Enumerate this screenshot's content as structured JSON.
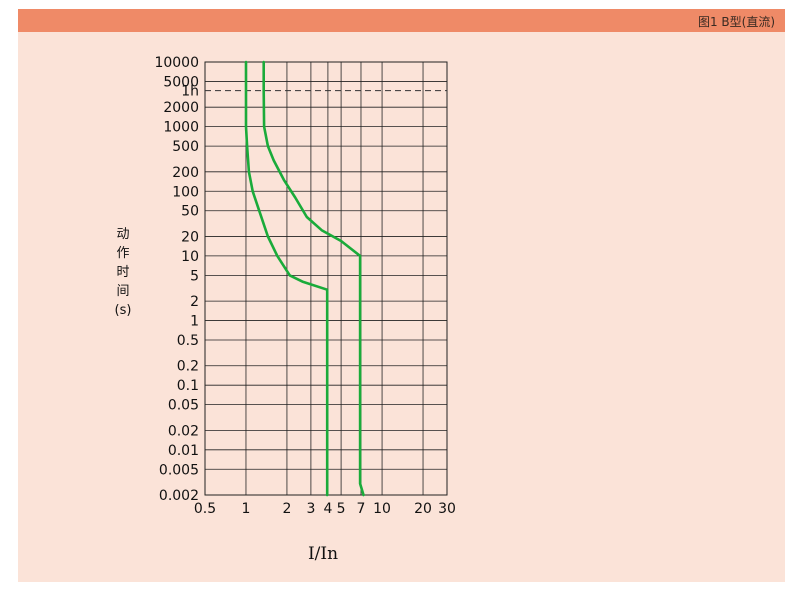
{
  "header": {
    "title": "图1   B型(直流)"
  },
  "colors": {
    "header": "#ef8a67",
    "panel": "#fbe3d8",
    "curve": "#1aab3a"
  },
  "chart_data": {
    "type": "line",
    "title": "图1   B型(直流)",
    "xlabel": "I/In",
    "ylabel_lines": [
      "动",
      "作",
      "时",
      "间",
      "(s)"
    ],
    "x_scale": "log",
    "y_scale": "log",
    "xlim": [
      0.5,
      30
    ],
    "ylim": [
      0.002,
      10000
    ],
    "x_ticks": [
      {
        "v": 0.5,
        "label": "0.5"
      },
      {
        "v": 1,
        "label": "1"
      },
      {
        "v": 2,
        "label": "2"
      },
      {
        "v": 3,
        "label": "3"
      },
      {
        "v": 4,
        "label": "4"
      },
      {
        "v": 5,
        "label": "5"
      },
      {
        "v": 7,
        "label": "7"
      },
      {
        "v": 10,
        "label": "10"
      },
      {
        "v": 20,
        "label": "20"
      },
      {
        "v": 30,
        "label": "30"
      }
    ],
    "y_ticks": [
      {
        "v": 10000,
        "label": "10000"
      },
      {
        "v": 5000,
        "label": "5000"
      },
      {
        "v": 3600,
        "label": "1h"
      },
      {
        "v": 2000,
        "label": "2000"
      },
      {
        "v": 1000,
        "label": "1000"
      },
      {
        "v": 500,
        "label": "500"
      },
      {
        "v": 200,
        "label": "200"
      },
      {
        "v": 100,
        "label": "100"
      },
      {
        "v": 50,
        "label": "50"
      },
      {
        "v": 20,
        "label": "20"
      },
      {
        "v": 10,
        "label": "10"
      },
      {
        "v": 5,
        "label": "5"
      },
      {
        "v": 2,
        "label": "2"
      },
      {
        "v": 1,
        "label": "1"
      },
      {
        "v": 0.5,
        "label": "0.5"
      },
      {
        "v": 0.2,
        "label": "0.2"
      },
      {
        "v": 0.1,
        "label": "0.1"
      },
      {
        "v": 0.05,
        "label": "0.05"
      },
      {
        "v": 0.02,
        "label": "0.02"
      },
      {
        "v": 0.01,
        "label": "0.01"
      },
      {
        "v": 0.005,
        "label": "0.005"
      },
      {
        "v": 0.002,
        "label": "0.002"
      }
    ],
    "reference_lines": [
      {
        "axis": "y",
        "value": 3600,
        "style": "dashed"
      }
    ],
    "grid": true,
    "series": [
      {
        "points": [
          [
            1.0,
            10000
          ],
          [
            1.0,
            3600
          ],
          [
            1.0,
            1000
          ],
          [
            1.02,
            500
          ],
          [
            1.05,
            200
          ],
          [
            1.12,
            100
          ],
          [
            1.25,
            50
          ],
          [
            1.45,
            20
          ],
          [
            1.7,
            10
          ],
          [
            2.1,
            5
          ],
          [
            2.6,
            4
          ],
          [
            3.95,
            3
          ],
          [
            3.95,
            0.002
          ]
        ]
      },
      {
        "points": [
          [
            1.35,
            10000
          ],
          [
            1.35,
            3600
          ],
          [
            1.36,
            1000
          ],
          [
            1.45,
            500
          ],
          [
            1.6,
            300
          ],
          [
            1.9,
            150
          ],
          [
            2.3,
            80
          ],
          [
            2.8,
            40
          ],
          [
            3.6,
            25
          ],
          [
            5.0,
            17
          ],
          [
            6.9,
            10
          ],
          [
            6.9,
            0.003
          ],
          [
            7.3,
            0.002
          ]
        ]
      }
    ]
  }
}
